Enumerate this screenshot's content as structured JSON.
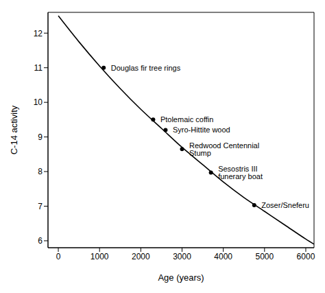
{
  "chart_data": {
    "type": "scatter",
    "xlabel": "Age (years)",
    "ylabel": "C-14 activity",
    "xlim": [
      -250,
      6200
    ],
    "ylim": [
      5.8,
      12.6
    ],
    "xticks": [
      0,
      1000,
      2000,
      3000,
      4000,
      5000,
      6000
    ],
    "yticks": [
      6,
      7,
      8,
      9,
      10,
      11,
      12
    ],
    "series": [
      {
        "type": "line",
        "color": "#000000",
        "line_style": "solid",
        "x": [
          0,
          500,
          1000,
          1500,
          2000,
          2500,
          3000,
          3500,
          4000,
          4500,
          5000,
          5500,
          6000,
          6200
        ],
        "values": [
          12.5,
          11.75,
          11.05,
          10.4,
          9.8,
          9.25,
          8.7,
          8.2,
          7.7,
          7.25,
          6.85,
          6.45,
          6.05,
          5.9
        ]
      },
      {
        "type": "scatter",
        "color": "#000000",
        "marker": "circle",
        "x": [
          1100,
          2300,
          2600,
          3000,
          3700,
          4750
        ],
        "values": [
          11.0,
          9.5,
          9.2,
          8.65,
          7.97,
          7.03
        ],
        "labels": [
          "Douglas fir tree rings",
          "Ptolemaic coffin",
          "Syro-Hittite wood",
          "Redwood Centennial Stump",
          "Sesostris III funerary boat",
          "Zoser/Sneferu"
        ]
      }
    ]
  }
}
